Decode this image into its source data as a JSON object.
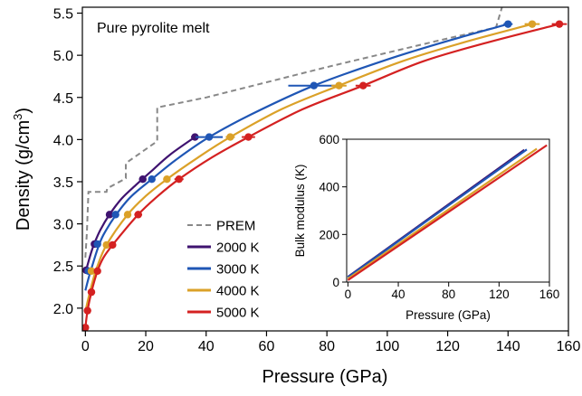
{
  "chart_data": [
    {
      "type": "line",
      "annotation": "Pure pyrolite melt",
      "xlabel": "Pressure (GPa)",
      "ylabel_main": "Density (g/cm",
      "ylabel_sup": "3",
      "ylabel_close": ")",
      "xlim": [
        -1,
        160
      ],
      "ylim": [
        1.73,
        5.57
      ],
      "xticks": [
        0,
        20,
        40,
        60,
        80,
        100,
        120,
        140,
        160
      ],
      "yticks": [
        2.0,
        2.5,
        3.0,
        3.5,
        4.0,
        4.5,
        5.0,
        5.5
      ],
      "ytick_labels": [
        "2.0",
        "2.5",
        "3.0",
        "3.5",
        "4.0",
        "4.5",
        "5.0",
        "5.5"
      ],
      "legend_position": "lower-left-center",
      "prem": {
        "name": "PREM",
        "color": "#888888",
        "style": "dashed",
        "points": [
          [
            0.0,
            2.6
          ],
          [
            0.5,
            2.9
          ],
          [
            1.0,
            3.38
          ],
          [
            7.0,
            3.38
          ],
          [
            7.2,
            3.42
          ],
          [
            13.4,
            3.54
          ],
          [
            13.4,
            3.72
          ],
          [
            23.8,
            3.98
          ],
          [
            23.8,
            4.38
          ],
          [
            40.0,
            4.5
          ],
          [
            60.0,
            4.68
          ],
          [
            80.0,
            4.86
          ],
          [
            100.0,
            5.03
          ],
          [
            120.0,
            5.2
          ],
          [
            136.0,
            5.33
          ],
          [
            138.0,
            5.57
          ]
        ]
      },
      "series": [
        {
          "name": "2000 K",
          "color": "#3f1370",
          "curve": [
            [
              0.0,
              2.42
            ],
            [
              1.0,
              2.55
            ],
            [
              2.0,
              2.67
            ],
            [
              3.0,
              2.77
            ],
            [
              5.0,
              2.93
            ],
            [
              8.0,
              3.11
            ],
            [
              12.0,
              3.3
            ],
            [
              17.0,
              3.47
            ],
            [
              22.0,
              3.63
            ],
            [
              28.0,
              3.82
            ],
            [
              36.3,
              4.03
            ]
          ],
          "points": [
            [
              0.3,
              2.45
            ],
            [
              3.0,
              2.76
            ],
            [
              8.0,
              3.11
            ],
            [
              19.0,
              3.53
            ],
            [
              36.3,
              4.03
            ]
          ],
          "xerr": [
            0.5,
            0.7,
            1.0,
            1.2,
            1.3
          ]
        },
        {
          "name": "3000 K",
          "color": "#1f56b5",
          "curve": [
            [
              0.0,
              2.21
            ],
            [
              1.0,
              2.35
            ],
            [
              2.0,
              2.47
            ],
            [
              4.0,
              2.7
            ],
            [
              6.0,
              2.87
            ],
            [
              10.0,
              3.1
            ],
            [
              15.0,
              3.32
            ],
            [
              22.0,
              3.53
            ],
            [
              30.0,
              3.76
            ],
            [
              41.0,
              4.03
            ],
            [
              55.0,
              4.3
            ],
            [
              75.7,
              4.64
            ],
            [
              100.0,
              4.95
            ],
            [
              120.0,
              5.17
            ],
            [
              140.0,
              5.37
            ]
          ],
          "points": [
            [
              1.0,
              2.44
            ],
            [
              4.0,
              2.76
            ],
            [
              10.0,
              3.11
            ],
            [
              22.0,
              3.53
            ],
            [
              41.0,
              4.03
            ],
            [
              75.7,
              4.64
            ],
            [
              140.0,
              5.37
            ]
          ],
          "xerr": [
            0.5,
            0.6,
            0.8,
            1.0,
            4.5,
            8.5,
            1.5
          ]
        },
        {
          "name": "4000 K",
          "color": "#dba128",
          "curve": [
            [
              0.0,
              1.96
            ],
            [
              1.0,
              2.12
            ],
            [
              2.5,
              2.33
            ],
            [
              4.0,
              2.5
            ],
            [
              7.0,
              2.75
            ],
            [
              14.0,
              3.11
            ],
            [
              20.0,
              3.33
            ],
            [
              27.0,
              3.53
            ],
            [
              37.0,
              3.78
            ],
            [
              48.0,
              4.03
            ],
            [
              65.0,
              4.36
            ],
            [
              84.0,
              4.64
            ],
            [
              105.0,
              4.93
            ],
            [
              125.0,
              5.15
            ],
            [
              148.0,
              5.37
            ]
          ],
          "points": [
            [
              2.0,
              2.44
            ],
            [
              7.0,
              2.75
            ],
            [
              14.0,
              3.11
            ],
            [
              27.0,
              3.53
            ],
            [
              48.0,
              4.03
            ],
            [
              84.0,
              4.64
            ],
            [
              148.0,
              5.37
            ]
          ],
          "xerr": [
            0.6,
            0.8,
            1.0,
            1.2,
            1.5,
            2.5,
            2.5
          ]
        },
        {
          "name": "5000 K",
          "color": "#d42121",
          "curve": [
            [
              0.0,
              1.77
            ],
            [
              0.7,
              1.97
            ],
            [
              2.0,
              2.19
            ],
            [
              4.0,
              2.44
            ],
            [
              6.0,
              2.6
            ],
            [
              9.0,
              2.75
            ],
            [
              17.5,
              3.11
            ],
            [
              24.0,
              3.33
            ],
            [
              31.0,
              3.53
            ],
            [
              42.0,
              3.79
            ],
            [
              54.0,
              4.03
            ],
            [
              72.0,
              4.36
            ],
            [
              92.0,
              4.64
            ],
            [
              112.0,
              4.93
            ],
            [
              133.0,
              5.15
            ],
            [
              157.0,
              5.37
            ]
          ],
          "points": [
            [
              0.0,
              1.77
            ],
            [
              0.7,
              1.97
            ],
            [
              2.0,
              2.19
            ],
            [
              4.0,
              2.44
            ],
            [
              9.0,
              2.75
            ],
            [
              17.5,
              3.11
            ],
            [
              31.0,
              3.53
            ],
            [
              54.0,
              4.03
            ],
            [
              92.0,
              4.64
            ],
            [
              157.0,
              5.37
            ]
          ],
          "xerr": [
            0.2,
            0.3,
            0.4,
            0.6,
            1.0,
            1.3,
            1.5,
            2.2,
            2.5,
            2.5
          ]
        }
      ]
    },
    {
      "type": "line",
      "xlabel": "Pressure (GPa)",
      "ylabel": "Bulk modulus (K)",
      "xlim": [
        -1,
        160
      ],
      "ylim": [
        0,
        600
      ],
      "xticks": [
        0,
        40,
        80,
        120,
        160
      ],
      "yticks": [
        0,
        200,
        400,
        600
      ],
      "series": [
        {
          "name": "2000 K",
          "color": "#3f1370",
          "points": [
            [
              0.0,
              22.0
            ],
            [
              140.0,
              555.0
            ]
          ]
        },
        {
          "name": "3000 K",
          "color": "#1f56b5",
          "points": [
            [
              0.0,
              20.0
            ],
            [
              142.0,
              557.0
            ]
          ]
        },
        {
          "name": "4000 K",
          "color": "#dba128",
          "points": [
            [
              0.0,
              14.0
            ],
            [
              150.0,
              560.0
            ]
          ]
        },
        {
          "name": "5000 K",
          "color": "#d42121",
          "points": [
            [
              0.0,
              8.0
            ],
            [
              158.0,
              575.0
            ]
          ]
        }
      ]
    }
  ]
}
